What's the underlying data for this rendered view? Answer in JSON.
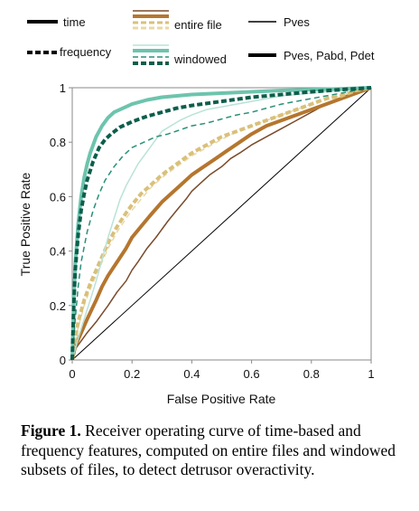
{
  "legend": {
    "style_entries": [
      {
        "label": "time",
        "dash": "solid"
      },
      {
        "label": "frequency",
        "dash": "dashed"
      }
    ],
    "scope_entries": [
      {
        "label": "entire file",
        "colors": [
          "#9a5b2a",
          "#e8d6a6"
        ]
      },
      {
        "label": "windowed",
        "colors": [
          "#1f7a68",
          "#8fd4c4"
        ]
      }
    ],
    "feature_entries": [
      {
        "label": "Pves",
        "weight": "thin"
      },
      {
        "label": "Pves, Pabd, Pdet",
        "weight": "thick"
      }
    ]
  },
  "caption": {
    "label": "Figure 1.",
    "text": "Receiver operating curve of time-based and frequency features, computed on entire files and windowed subsets of files, to detect detrusor overactivity."
  },
  "chart_data": {
    "type": "line",
    "xlabel": "False Positive Rate",
    "ylabel": "True Positive Rate",
    "xlim": [
      0,
      1
    ],
    "ylim": [
      0,
      1
    ],
    "xticks": [
      "0",
      "0.2",
      "0.4",
      "0.6",
      "0.8",
      "1"
    ],
    "yticks": [
      "0",
      "0.2",
      "0.4",
      "0.6",
      "0.8",
      "1"
    ],
    "grid": false,
    "chance_line": {
      "x": [
        0,
        1
      ],
      "y": [
        0,
        1
      ],
      "color": "#000000"
    },
    "series": [
      {
        "id": "entire-time-pves",
        "color": "#7a4a2a",
        "dash": "solid",
        "weight": "thin",
        "x": [
          0,
          0.01,
          0.03,
          0.05,
          0.08,
          0.1,
          0.12,
          0.15,
          0.18,
          0.2,
          0.22,
          0.25,
          0.28,
          0.3,
          0.32,
          0.35,
          0.38,
          0.4,
          0.43,
          0.46,
          0.5,
          0.53,
          0.56,
          0.6,
          0.65,
          0.7,
          0.75,
          0.8,
          0.85,
          0.9,
          0.95,
          1
        ],
        "y": [
          0,
          0.04,
          0.07,
          0.1,
          0.14,
          0.17,
          0.2,
          0.25,
          0.29,
          0.33,
          0.36,
          0.41,
          0.45,
          0.48,
          0.51,
          0.55,
          0.59,
          0.62,
          0.65,
          0.68,
          0.71,
          0.74,
          0.76,
          0.79,
          0.82,
          0.85,
          0.88,
          0.91,
          0.94,
          0.96,
          0.98,
          1
        ]
      },
      {
        "id": "entire-time-all",
        "color": "#b5762e",
        "dash": "solid",
        "weight": "thick",
        "x": [
          0,
          0.01,
          0.03,
          0.05,
          0.08,
          0.1,
          0.12,
          0.15,
          0.18,
          0.2,
          0.23,
          0.26,
          0.3,
          0.33,
          0.36,
          0.4,
          0.44,
          0.48,
          0.52,
          0.56,
          0.6,
          0.65,
          0.7,
          0.75,
          0.8,
          0.85,
          0.9,
          0.95,
          1
        ],
        "y": [
          0,
          0.05,
          0.1,
          0.15,
          0.22,
          0.27,
          0.31,
          0.36,
          0.41,
          0.45,
          0.49,
          0.53,
          0.58,
          0.61,
          0.64,
          0.68,
          0.71,
          0.74,
          0.77,
          0.8,
          0.83,
          0.86,
          0.88,
          0.9,
          0.92,
          0.94,
          0.96,
          0.98,
          1
        ]
      },
      {
        "id": "entire-freq-pves",
        "color": "#ead8a4",
        "dash": "dashed",
        "weight": "thin",
        "x": [
          0,
          0.01,
          0.02,
          0.04,
          0.06,
          0.08,
          0.1,
          0.12,
          0.15,
          0.18,
          0.2,
          0.23,
          0.26,
          0.3,
          0.35,
          0.4,
          0.45,
          0.5,
          0.55,
          0.6,
          0.65,
          0.7,
          0.75,
          0.8,
          0.85,
          0.9,
          0.95,
          1
        ],
        "y": [
          0,
          0.07,
          0.12,
          0.2,
          0.26,
          0.31,
          0.36,
          0.41,
          0.47,
          0.52,
          0.55,
          0.59,
          0.63,
          0.67,
          0.71,
          0.75,
          0.78,
          0.81,
          0.84,
          0.86,
          0.88,
          0.9,
          0.92,
          0.94,
          0.96,
          0.97,
          0.99,
          1
        ]
      },
      {
        "id": "entire-freq-all",
        "color": "#d9c07a",
        "dash": "dashed",
        "weight": "thick",
        "x": [
          0,
          0.01,
          0.02,
          0.04,
          0.06,
          0.08,
          0.1,
          0.12,
          0.15,
          0.18,
          0.2,
          0.23,
          0.26,
          0.3,
          0.35,
          0.4,
          0.45,
          0.5,
          0.55,
          0.6,
          0.65,
          0.7,
          0.75,
          0.8,
          0.85,
          0.9,
          0.95,
          1
        ],
        "y": [
          0,
          0.08,
          0.14,
          0.22,
          0.28,
          0.33,
          0.38,
          0.43,
          0.49,
          0.54,
          0.57,
          0.61,
          0.64,
          0.68,
          0.72,
          0.76,
          0.79,
          0.82,
          0.84,
          0.86,
          0.88,
          0.9,
          0.92,
          0.94,
          0.96,
          0.97,
          0.99,
          1
        ]
      },
      {
        "id": "windowed-time-pves",
        "color": "#b9e3d8",
        "dash": "solid",
        "weight": "thin",
        "x": [
          0,
          0.02,
          0.04,
          0.06,
          0.08,
          0.1,
          0.12,
          0.14,
          0.16,
          0.18,
          0.2,
          0.22,
          0.24,
          0.26,
          0.28,
          0.3,
          0.33,
          0.36,
          0.4,
          0.45,
          0.5,
          0.6,
          0.7,
          0.8,
          0.9,
          1
        ],
        "y": [
          0,
          0.08,
          0.15,
          0.22,
          0.29,
          0.37,
          0.45,
          0.52,
          0.59,
          0.64,
          0.68,
          0.72,
          0.75,
          0.78,
          0.81,
          0.84,
          0.86,
          0.88,
          0.9,
          0.92,
          0.93,
          0.95,
          0.97,
          0.98,
          0.99,
          1
        ]
      },
      {
        "id": "windowed-time-all",
        "color": "#6dc4ad",
        "dash": "solid",
        "weight": "thick",
        "x": [
          0,
          0.005,
          0.01,
          0.02,
          0.03,
          0.04,
          0.05,
          0.06,
          0.08,
          0.1,
          0.12,
          0.14,
          0.16,
          0.18,
          0.2,
          0.25,
          0.3,
          0.35,
          0.4,
          0.5,
          0.6,
          0.7,
          0.8,
          0.9,
          1
        ],
        "y": [
          0,
          0.22,
          0.35,
          0.5,
          0.6,
          0.67,
          0.72,
          0.76,
          0.82,
          0.86,
          0.89,
          0.91,
          0.92,
          0.93,
          0.94,
          0.955,
          0.965,
          0.97,
          0.975,
          0.98,
          0.985,
          0.99,
          0.993,
          0.996,
          1
        ]
      },
      {
        "id": "windowed-freq-pves",
        "color": "#2a9078",
        "dash": "dashed",
        "weight": "thin",
        "x": [
          0,
          0.01,
          0.02,
          0.03,
          0.05,
          0.07,
          0.09,
          0.11,
          0.14,
          0.17,
          0.2,
          0.24,
          0.28,
          0.32,
          0.36,
          0.4,
          0.45,
          0.5,
          0.55,
          0.6,
          0.65,
          0.7,
          0.8,
          0.9,
          1
        ],
        "y": [
          0,
          0.15,
          0.27,
          0.36,
          0.47,
          0.55,
          0.61,
          0.66,
          0.71,
          0.75,
          0.78,
          0.8,
          0.82,
          0.83,
          0.845,
          0.86,
          0.87,
          0.885,
          0.9,
          0.91,
          0.925,
          0.94,
          0.96,
          0.98,
          1
        ]
      },
      {
        "id": "windowed-freq-all",
        "color": "#0d5e4c",
        "dash": "dashed",
        "weight": "thick",
        "x": [
          0,
          0.005,
          0.01,
          0.02,
          0.03,
          0.04,
          0.05,
          0.07,
          0.09,
          0.11,
          0.13,
          0.16,
          0.2,
          0.25,
          0.3,
          0.35,
          0.4,
          0.5,
          0.6,
          0.7,
          0.8,
          0.9,
          1
        ],
        "y": [
          0,
          0.2,
          0.33,
          0.46,
          0.55,
          0.61,
          0.66,
          0.73,
          0.78,
          0.81,
          0.83,
          0.855,
          0.875,
          0.895,
          0.91,
          0.925,
          0.935,
          0.95,
          0.965,
          0.975,
          0.985,
          0.993,
          1
        ]
      }
    ]
  }
}
